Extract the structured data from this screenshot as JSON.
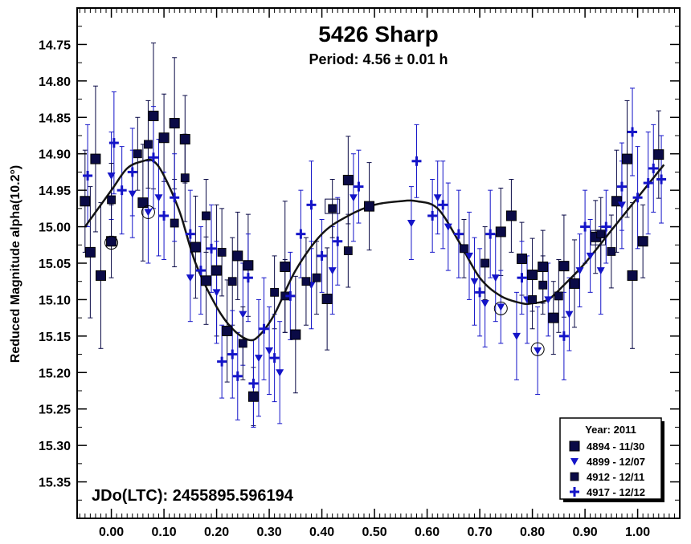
{
  "chart_data": {
    "type": "scatter",
    "title": "5426 Sharp",
    "subtitle": "Period: 4.56 ± 0.01 h",
    "ylabel": "Reduced Magnitude alpha(10.2°)",
    "xlabel": "",
    "xlim": [
      -0.065,
      1.08
    ],
    "ylim": [
      14.7,
      15.4
    ],
    "y_inverted": true,
    "x_ticks": [
      "0.00",
      "0.10",
      "0.20",
      "0.30",
      "0.40",
      "0.50",
      "0.60",
      "0.70",
      "0.80",
      "0.90",
      "1.00"
    ],
    "x_tick_values": [
      0,
      0.1,
      0.2,
      0.3,
      0.4,
      0.5,
      0.6,
      0.7,
      0.8,
      0.9,
      1.0
    ],
    "y_ticks": [
      "14.75",
      "14.80",
      "14.85",
      "14.90",
      "14.95",
      "15.00",
      "15.05",
      "15.10",
      "15.15",
      "15.20",
      "15.25",
      "15.30",
      "15.35"
    ],
    "y_tick_values": [
      14.75,
      14.8,
      14.85,
      14.9,
      14.95,
      15.0,
      15.05,
      15.1,
      15.15,
      15.2,
      15.25,
      15.3,
      15.35
    ],
    "annotation": "JDo(LTC): 2455895.596194",
    "legend": {
      "title": "Year: 2011",
      "position": "bottom-right",
      "entries": [
        {
          "label": "4894 - 11/30",
          "marker": "square-large"
        },
        {
          "label": "4899 - 12/07",
          "marker": "triangle-down"
        },
        {
          "label": "4912 - 12/11",
          "marker": "square-small"
        },
        {
          "label": "4917 - 12/12",
          "marker": "plus"
        }
      ]
    },
    "colors": {
      "dark": "#0a0a46",
      "blue": "#1414c8",
      "fit": "#141414"
    },
    "fit_curve": {
      "x": [
        -0.05,
        0.0,
        0.03,
        0.06,
        0.08,
        0.1,
        0.13,
        0.16,
        0.2,
        0.23,
        0.26,
        0.28,
        0.31,
        0.35,
        0.4,
        0.45,
        0.5,
        0.55,
        0.58,
        0.62,
        0.66,
        0.7,
        0.74,
        0.78,
        0.8,
        0.83,
        0.86,
        0.9,
        0.95,
        1.0,
        1.05
      ],
      "y": [
        15.0,
        14.95,
        14.92,
        14.91,
        14.91,
        14.93,
        14.98,
        15.05,
        15.11,
        15.14,
        15.155,
        15.15,
        15.12,
        15.06,
        15.01,
        14.985,
        14.97,
        14.965,
        14.965,
        14.975,
        15.02,
        15.07,
        15.095,
        15.105,
        15.105,
        15.1,
        15.08,
        15.05,
        15.005,
        14.96,
        14.915
      ]
    },
    "series": [
      {
        "name": "4894 - 11/30",
        "marker": "square-large",
        "points": [
          {
            "x": -0.05,
            "y": 14.965,
            "err": 0.07
          },
          {
            "x": -0.04,
            "y": 15.035,
            "err": 0.09
          },
          {
            "x": -0.03,
            "y": 14.907,
            "err": 0.1
          },
          {
            "x": -0.02,
            "y": 15.067,
            "err": 0.1
          },
          {
            "x": 0.0,
            "y": 15.02,
            "err": 0.05
          },
          {
            "x": 0.06,
            "y": 14.967,
            "err": 0.08
          },
          {
            "x": 0.08,
            "y": 14.848,
            "err": 0.1
          },
          {
            "x": 0.1,
            "y": 14.878,
            "err": 0.06
          },
          {
            "x": 0.12,
            "y": 14.858,
            "err": 0.09
          },
          {
            "x": 0.14,
            "y": 14.88,
            "err": 0.06
          },
          {
            "x": 0.16,
            "y": 15.028,
            "err": 0.07
          },
          {
            "x": 0.18,
            "y": 15.074,
            "err": 0.06
          },
          {
            "x": 0.2,
            "y": 15.06,
            "err": 0.09
          },
          {
            "x": 0.22,
            "y": 15.143,
            "err": 0.07
          },
          {
            "x": 0.24,
            "y": 15.04,
            "err": 0.06
          },
          {
            "x": 0.26,
            "y": 15.053,
            "err": 0.07
          },
          {
            "x": 0.27,
            "y": 15.233,
            "err": 0.04
          },
          {
            "x": 0.33,
            "y": 15.055,
            "err": 0.09
          },
          {
            "x": 0.35,
            "y": 15.148,
            "err": 0.08
          },
          {
            "x": 0.41,
            "y": 15.099,
            "err": 0.07
          },
          {
            "x": 0.45,
            "y": 14.936,
            "err": 0.06
          },
          {
            "x": 0.49,
            "y": 14.972,
            "err": 0.06
          },
          {
            "x": 0.74,
            "y": 15.007,
            "err": 0.06
          },
          {
            "x": 0.76,
            "y": 14.985,
            "err": 0.05
          },
          {
            "x": 0.78,
            "y": 15.044,
            "err": 0.05
          },
          {
            "x": 0.8,
            "y": 15.066,
            "err": 0.05
          },
          {
            "x": 0.82,
            "y": 15.055,
            "err": 0.05
          },
          {
            "x": 0.84,
            "y": 15.125,
            "err": 0.05
          },
          {
            "x": 0.86,
            "y": 15.054,
            "err": 0.07
          },
          {
            "x": 0.88,
            "y": 15.078,
            "err": 0.06
          },
          {
            "x": 0.92,
            "y": 15.014,
            "err": 0.05
          },
          {
            "x": 0.96,
            "y": 14.965,
            "err": 0.07
          },
          {
            "x": 0.98,
            "y": 14.907,
            "err": 0.08
          },
          {
            "x": 0.99,
            "y": 15.067,
            "err": 0.1
          },
          {
            "x": 1.01,
            "y": 15.02,
            "err": 0.05
          },
          {
            "x": 1.04,
            "y": 14.901,
            "err": 0.06
          }
        ]
      },
      {
        "name": "4899 - 12/07",
        "marker": "triangle-down",
        "points": [
          {
            "x": 0.0,
            "y": 14.93,
            "err": 0.06
          },
          {
            "x": 0.04,
            "y": 14.955,
            "err": 0.06
          },
          {
            "x": 0.07,
            "y": 14.98,
            "err": 0.07
          },
          {
            "x": 0.09,
            "y": 14.96,
            "err": 0.08
          },
          {
            "x": 0.15,
            "y": 15.07,
            "err": 0.06
          },
          {
            "x": 0.2,
            "y": 15.09,
            "err": 0.07
          },
          {
            "x": 0.25,
            "y": 15.12,
            "err": 0.07
          },
          {
            "x": 0.28,
            "y": 15.18,
            "err": 0.08
          },
          {
            "x": 0.3,
            "y": 15.17,
            "err": 0.06
          },
          {
            "x": 0.32,
            "y": 15.2,
            "err": 0.07
          },
          {
            "x": 0.38,
            "y": 15.08,
            "err": 0.06
          },
          {
            "x": 0.42,
            "y": 15.06,
            "err": 0.06
          },
          {
            "x": 0.46,
            "y": 14.96,
            "err": 0.06
          },
          {
            "x": 0.57,
            "y": 14.995,
            "err": 0.05
          },
          {
            "x": 0.62,
            "y": 14.96,
            "err": 0.05
          },
          {
            "x": 0.64,
            "y": 15.0,
            "err": 0.06
          },
          {
            "x": 0.68,
            "y": 15.04,
            "err": 0.06
          },
          {
            "x": 0.69,
            "y": 15.075,
            "err": 0.06
          },
          {
            "x": 0.71,
            "y": 15.105,
            "err": 0.06
          },
          {
            "x": 0.73,
            "y": 15.07,
            "err": 0.06
          },
          {
            "x": 0.74,
            "y": 15.11,
            "err": 0.05
          },
          {
            "x": 0.77,
            "y": 15.15,
            "err": 0.06
          },
          {
            "x": 0.79,
            "y": 15.1,
            "err": 0.06
          },
          {
            "x": 0.81,
            "y": 15.17,
            "err": 0.06
          },
          {
            "x": 0.83,
            "y": 15.1,
            "err": 0.05
          },
          {
            "x": 0.87,
            "y": 15.12,
            "err": 0.05
          },
          {
            "x": 0.89,
            "y": 15.06,
            "err": 0.05
          },
          {
            "x": 0.91,
            "y": 15.04,
            "err": 0.05
          },
          {
            "x": 0.93,
            "y": 15.06,
            "err": 0.06
          },
          {
            "x": 0.97,
            "y": 14.97,
            "err": 0.06
          }
        ]
      },
      {
        "name": "4912 - 12/11",
        "marker": "square-small",
        "points": [
          {
            "x": 0.0,
            "y": 14.963,
            "err": 0.05
          },
          {
            "x": 0.05,
            "y": 14.9,
            "err": 0.05
          },
          {
            "x": 0.07,
            "y": 14.887,
            "err": 0.06
          },
          {
            "x": 0.12,
            "y": 14.995,
            "err": 0.06
          },
          {
            "x": 0.14,
            "y": 14.933,
            "err": 0.06
          },
          {
            "x": 0.18,
            "y": 14.985,
            "err": 0.05
          },
          {
            "x": 0.21,
            "y": 15.035,
            "err": 0.06
          },
          {
            "x": 0.23,
            "y": 15.075,
            "err": 0.06
          },
          {
            "x": 0.25,
            "y": 15.16,
            "err": 0.05
          },
          {
            "x": 0.31,
            "y": 15.09,
            "err": 0.05
          },
          {
            "x": 0.33,
            "y": 15.095,
            "err": 0.05
          },
          {
            "x": 0.37,
            "y": 15.075,
            "err": 0.06
          },
          {
            "x": 0.39,
            "y": 15.07,
            "err": 0.05
          },
          {
            "x": 0.42,
            "y": 14.975,
            "err": 0.04
          },
          {
            "x": 0.45,
            "y": 15.033,
            "err": 0.05
          },
          {
            "x": 0.67,
            "y": 15.03,
            "err": 0.04
          },
          {
            "x": 0.71,
            "y": 15.05,
            "err": 0.05
          },
          {
            "x": 0.8,
            "y": 15.1,
            "err": 0.04
          },
          {
            "x": 0.82,
            "y": 15.08,
            "err": 0.04
          },
          {
            "x": 0.85,
            "y": 15.095,
            "err": 0.05
          },
          {
            "x": 0.93,
            "y": 15.01,
            "err": 0.05
          },
          {
            "x": 0.95,
            "y": 15.034,
            "err": 0.05
          }
        ]
      },
      {
        "name": "4917 - 12/12",
        "marker": "plus",
        "points": [
          {
            "x": -0.045,
            "y": 14.93,
            "err": 0.07
          },
          {
            "x": 0.005,
            "y": 14.885,
            "err": 0.07
          },
          {
            "x": 0.02,
            "y": 14.95,
            "err": 0.06
          },
          {
            "x": 0.04,
            "y": 14.925,
            "err": 0.06
          },
          {
            "x": 0.08,
            "y": 14.905,
            "err": 0.07
          },
          {
            "x": 0.1,
            "y": 14.985,
            "err": 0.06
          },
          {
            "x": 0.12,
            "y": 14.96,
            "err": 0.06
          },
          {
            "x": 0.15,
            "y": 15.01,
            "err": 0.06
          },
          {
            "x": 0.17,
            "y": 15.06,
            "err": 0.06
          },
          {
            "x": 0.19,
            "y": 15.03,
            "err": 0.06
          },
          {
            "x": 0.21,
            "y": 15.185,
            "err": 0.05
          },
          {
            "x": 0.23,
            "y": 15.175,
            "err": 0.06
          },
          {
            "x": 0.24,
            "y": 15.205,
            "err": 0.06
          },
          {
            "x": 0.26,
            "y": 15.07,
            "err": 0.06
          },
          {
            "x": 0.27,
            "y": 15.215,
            "err": 0.06
          },
          {
            "x": 0.29,
            "y": 15.14,
            "err": 0.07
          },
          {
            "x": 0.31,
            "y": 15.18,
            "err": 0.06
          },
          {
            "x": 0.34,
            "y": 15.095,
            "err": 0.06
          },
          {
            "x": 0.36,
            "y": 15.01,
            "err": 0.06
          },
          {
            "x": 0.38,
            "y": 14.97,
            "err": 0.06
          },
          {
            "x": 0.4,
            "y": 15.04,
            "err": 0.05
          },
          {
            "x": 0.43,
            "y": 15.02,
            "err": 0.06
          },
          {
            "x": 0.47,
            "y": 14.945,
            "err": 0.05
          },
          {
            "x": 0.58,
            "y": 14.91,
            "err": 0.05
          },
          {
            "x": 0.61,
            "y": 14.985,
            "err": 0.05
          },
          {
            "x": 0.63,
            "y": 14.97,
            "err": 0.06
          },
          {
            "x": 0.66,
            "y": 15.01,
            "err": 0.06
          },
          {
            "x": 0.7,
            "y": 15.09,
            "err": 0.06
          },
          {
            "x": 0.72,
            "y": 15.01,
            "err": 0.06
          },
          {
            "x": 0.78,
            "y": 15.07,
            "err": 0.05
          },
          {
            "x": 0.86,
            "y": 15.15,
            "err": 0.06
          },
          {
            "x": 0.9,
            "y": 15.0,
            "err": 0.05
          },
          {
            "x": 0.94,
            "y": 15.0,
            "err": 0.05
          },
          {
            "x": 0.97,
            "y": 14.945,
            "err": 0.06
          },
          {
            "x": 0.99,
            "y": 14.87,
            "err": 0.06
          },
          {
            "x": 1.0,
            "y": 14.96,
            "err": 0.07
          },
          {
            "x": 1.02,
            "y": 14.94,
            "err": 0.07
          },
          {
            "x": 1.03,
            "y": 14.92,
            "err": 0.06
          },
          {
            "x": 1.045,
            "y": 14.935,
            "err": 0.06
          }
        ]
      }
    ],
    "highlighted_points": [
      {
        "x": 0.0,
        "y": 15.022,
        "marker": "circle"
      },
      {
        "x": 0.07,
        "y": 14.98,
        "marker": "circle"
      },
      {
        "x": 0.42,
        "y": 14.972,
        "marker": "box"
      },
      {
        "x": 0.74,
        "y": 15.112,
        "marker": "circle"
      },
      {
        "x": 0.81,
        "y": 15.168,
        "marker": "circle"
      },
      {
        "x": 0.925,
        "y": 15.015,
        "marker": "box"
      }
    ]
  }
}
